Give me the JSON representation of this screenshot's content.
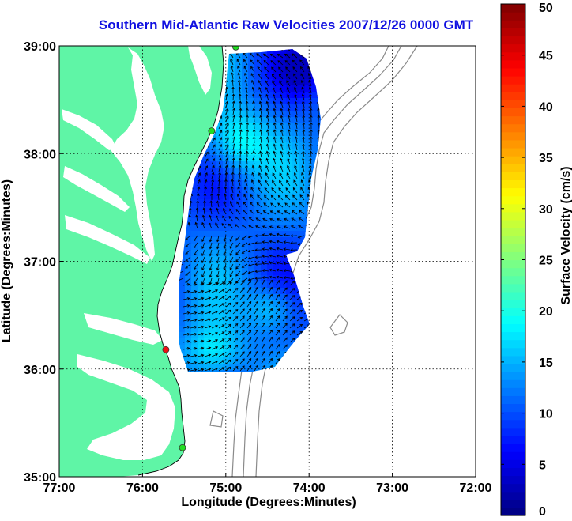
{
  "chart_data": {
    "type": "heatmap",
    "title": "Southern Mid-Atlantic Raw Velocities 2007/12/26 0000 GMT",
    "xlabel": "Longitude (Degrees:Minutes)",
    "ylabel": "Latitude (Degrees:Minutes)",
    "xlim": [
      -77,
      -72
    ],
    "ylim": [
      35,
      39
    ],
    "x_ticks": [
      {
        "value": -77,
        "label": "77:00"
      },
      {
        "value": -76,
        "label": "76:00"
      },
      {
        "value": -75,
        "label": "75:00"
      },
      {
        "value": -74,
        "label": "74:00"
      },
      {
        "value": -73,
        "label": "73:00"
      },
      {
        "value": -72,
        "label": "72:00"
      }
    ],
    "y_ticks": [
      {
        "value": 35,
        "label": "35:00"
      },
      {
        "value": 36,
        "label": "36:00"
      },
      {
        "value": 37,
        "label": "37:00"
      },
      {
        "value": 38,
        "label": "38:00"
      },
      {
        "value": 39,
        "label": "39:00"
      }
    ],
    "grid": true,
    "colorbar": {
      "label": "Surface Velocity (cm/s)",
      "min": 0,
      "max": 50,
      "ticks": [
        0,
        5,
        10,
        15,
        20,
        25,
        30,
        35,
        40,
        45,
        50
      ],
      "colormap": "jet",
      "placement": "right"
    },
    "stations": [
      {
        "lon": -74.88,
        "lat": 38.99,
        "color": "#22dd22"
      },
      {
        "lon": -75.17,
        "lat": 38.21,
        "color": "#22dd22"
      },
      {
        "lon": -75.72,
        "lat": 36.18,
        "color": "#ee1111"
      },
      {
        "lon": -75.52,
        "lat": 35.27,
        "color": "#22dd22"
      }
    ]
  },
  "colors": {
    "land": "#5ff5a6",
    "water": "#ffffff",
    "bathymetry": "#8a8a8a",
    "title": "#1010e0",
    "frame": "#000000"
  }
}
